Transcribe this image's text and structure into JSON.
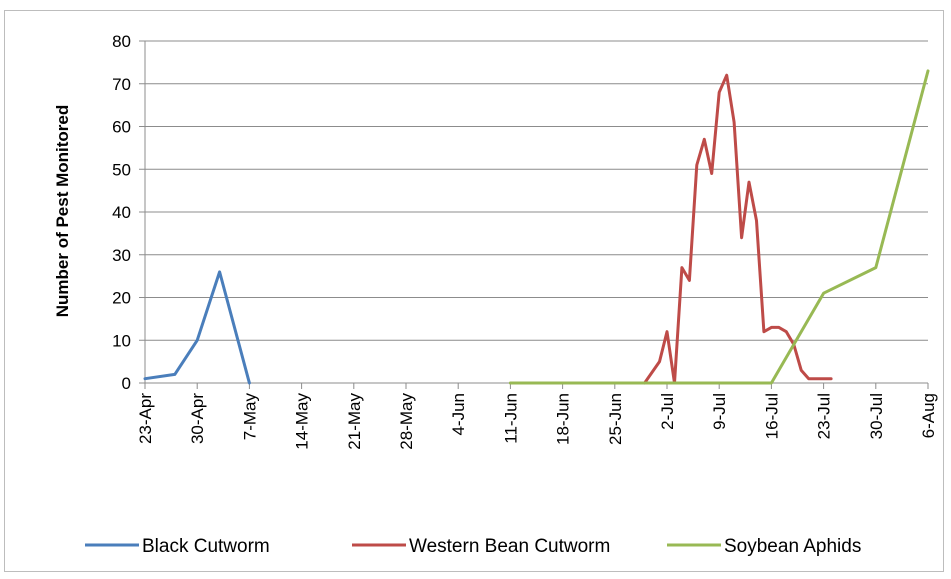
{
  "chart_data": {
    "type": "line",
    "title": "",
    "xlabel": "",
    "ylabel": "Number of Pest Monitored",
    "ylim": [
      0,
      80
    ],
    "yticks": [
      0,
      10,
      20,
      30,
      40,
      50,
      60,
      70,
      80
    ],
    "xlim": [
      "2012-04-23",
      "2012-08-06"
    ],
    "x_tick_labels": [
      "23-Apr",
      "30-Apr",
      "7-May",
      "14-May",
      "21-May",
      "28-May",
      "4-Jun",
      "11-Jun",
      "18-Jun",
      "25-Jun",
      "2-Jul",
      "9-Jul",
      "16-Jul",
      "23-Jul",
      "30-Jul",
      "6-Aug"
    ],
    "x_tick_dates": [
      "2012-04-23",
      "2012-04-30",
      "2012-05-07",
      "2012-05-14",
      "2012-05-21",
      "2012-05-28",
      "2012-06-04",
      "2012-06-11",
      "2012-06-18",
      "2012-06-25",
      "2012-07-02",
      "2012-07-09",
      "2012-07-16",
      "2012-07-23",
      "2012-07-30",
      "2012-08-06"
    ],
    "grid": "horizontal",
    "legend_position": "bottom",
    "series": [
      {
        "name": "Black Cutworm",
        "color": "#4a7ebb",
        "points": [
          [
            "2012-04-23",
            1
          ],
          [
            "2012-04-27",
            2
          ],
          [
            "2012-04-30",
            10
          ],
          [
            "2012-05-03",
            26
          ],
          [
            "2012-05-07",
            0
          ]
        ]
      },
      {
        "name": "Western Bean Cutworm",
        "color": "#be4b48",
        "points": [
          [
            "2012-06-29",
            0
          ],
          [
            "2012-07-01",
            5
          ],
          [
            "2012-07-02",
            12
          ],
          [
            "2012-07-03",
            0
          ],
          [
            "2012-07-04",
            27
          ],
          [
            "2012-07-05",
            24
          ],
          [
            "2012-07-06",
            51
          ],
          [
            "2012-07-07",
            57
          ],
          [
            "2012-07-08",
            49
          ],
          [
            "2012-07-09",
            68
          ],
          [
            "2012-07-10",
            72
          ],
          [
            "2012-07-11",
            61
          ],
          [
            "2012-07-12",
            34
          ],
          [
            "2012-07-13",
            47
          ],
          [
            "2012-07-14",
            38
          ],
          [
            "2012-07-15",
            12
          ],
          [
            "2012-07-16",
            13
          ],
          [
            "2012-07-17",
            13
          ],
          [
            "2012-07-18",
            12
          ],
          [
            "2012-07-19",
            9
          ],
          [
            "2012-07-20",
            3
          ],
          [
            "2012-07-21",
            1
          ],
          [
            "2012-07-24",
            1
          ]
        ]
      },
      {
        "name": "Soybean Aphids",
        "color": "#98b954",
        "points": [
          [
            "2012-06-11",
            0
          ],
          [
            "2012-07-16",
            0
          ],
          [
            "2012-07-23",
            21
          ],
          [
            "2012-07-30",
            27
          ],
          [
            "2012-08-06",
            73
          ]
        ]
      }
    ]
  }
}
